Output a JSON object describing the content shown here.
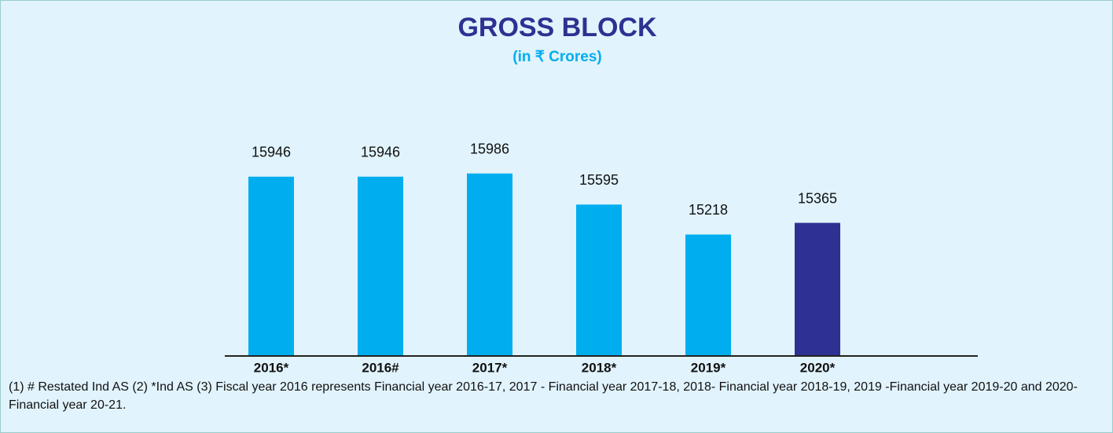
{
  "chart_data": {
    "type": "bar",
    "title": "GROSS BLOCK",
    "subtitle": "(in ₹ Crores)",
    "categories": [
      "2016*",
      "2016#",
      "2017*",
      "2018*",
      "2019*",
      "2020*"
    ],
    "values": [
      15946,
      15946,
      15986,
      15595,
      15218,
      15365
    ],
    "colors": [
      "#00aeef",
      "#00aeef",
      "#00aeef",
      "#00aeef",
      "#00aeef",
      "#2e3192"
    ],
    "ylim": [
      13700,
      16300
    ],
    "note": "(1) # Restated Ind AS (2) *Ind AS (3) Fiscal year 2016 represents Financial year 2016-17, 2017 - Financial year 2017-18, 2018- Financial year 2018-19, 2019 -Financial year 2019-20 and 2020-Financial year 20-21."
  }
}
